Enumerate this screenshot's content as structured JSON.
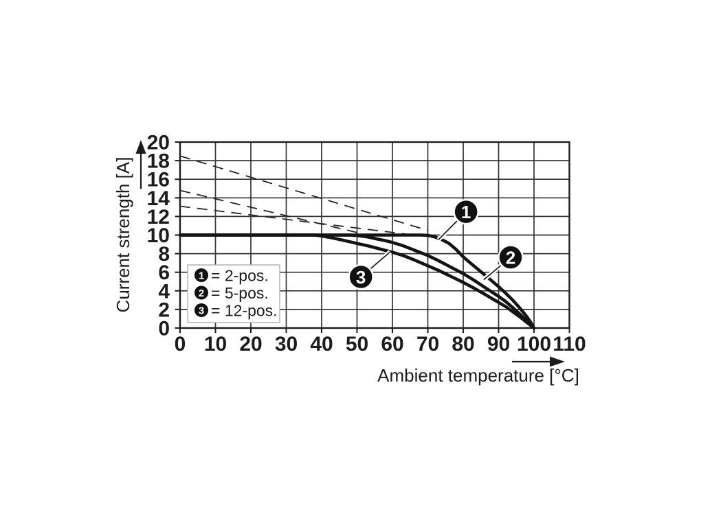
{
  "figure": {
    "y_axis_title": "Current strength [A]",
    "x_axis_title": "Ambient temperature [°C]"
  },
  "legend": {
    "items": [
      {
        "marker": "1",
        "label": "= 2-pos."
      },
      {
        "marker": "2",
        "label": "= 5-pos."
      },
      {
        "marker": "3",
        "label": "= 12-pos."
      }
    ]
  },
  "colors": {
    "ink": "#1c1c1c",
    "grid": "#333333",
    "curve": "#141414",
    "background": "#ffffff",
    "callout_fill": "#111111",
    "callout_text": "#ffffff"
  },
  "chart_data": {
    "type": "line",
    "title": "",
    "xlabel": "Ambient temperature [°C]",
    "ylabel": "Current strength [A]",
    "xlim": [
      0,
      110
    ],
    "ylim": [
      0,
      20
    ],
    "x_ticks": [
      0,
      10,
      20,
      30,
      40,
      50,
      60,
      70,
      80,
      90,
      100,
      110
    ],
    "y_ticks": [
      0,
      2,
      4,
      6,
      8,
      10,
      12,
      14,
      16,
      18,
      20
    ],
    "grid": true,
    "legend_position": "lower-left",
    "series": [
      {
        "name": "2-pos.",
        "callout": "1",
        "style": "solid",
        "points": [
          [
            0,
            10
          ],
          [
            68,
            10
          ],
          [
            70,
            9.97
          ],
          [
            72,
            9.8
          ],
          [
            74,
            9.5
          ],
          [
            76,
            9.1
          ],
          [
            78,
            8.45
          ],
          [
            80,
            7.65
          ],
          [
            82,
            7.0
          ],
          [
            85,
            6.05
          ],
          [
            88,
            5.1
          ],
          [
            90,
            4.45
          ],
          [
            92,
            3.75
          ],
          [
            94,
            3.0
          ],
          [
            96,
            2.15
          ],
          [
            98,
            1.2
          ],
          [
            99,
            0.65
          ],
          [
            100,
            0
          ]
        ]
      },
      {
        "name": "5-pos.",
        "callout": "2",
        "style": "solid",
        "points": [
          [
            0,
            10
          ],
          [
            48,
            10
          ],
          [
            50,
            9.95
          ],
          [
            53,
            9.8
          ],
          [
            56,
            9.55
          ],
          [
            58,
            9.4
          ],
          [
            60,
            9.2
          ],
          [
            63,
            8.85
          ],
          [
            65,
            8.55
          ],
          [
            68,
            8.1
          ],
          [
            70,
            7.8
          ],
          [
            73,
            7.25
          ],
          [
            76,
            6.65
          ],
          [
            78,
            6.25
          ],
          [
            80,
            5.85
          ],
          [
            83,
            5.15
          ],
          [
            86,
            4.4
          ],
          [
            88,
            3.9
          ],
          [
            90,
            3.4
          ],
          [
            92,
            2.85
          ],
          [
            94,
            2.2
          ],
          [
            96,
            1.5
          ],
          [
            98,
            0.75
          ],
          [
            100,
            0
          ]
        ]
      },
      {
        "name": "12-pos.",
        "callout": "3",
        "style": "solid",
        "points": [
          [
            0,
            10
          ],
          [
            38,
            10
          ],
          [
            40,
            9.9
          ],
          [
            43,
            9.7
          ],
          [
            46,
            9.45
          ],
          [
            50,
            9.1
          ],
          [
            53,
            8.85
          ],
          [
            56,
            8.55
          ],
          [
            60,
            8.15
          ],
          [
            63,
            7.8
          ],
          [
            66,
            7.35
          ],
          [
            70,
            6.7
          ],
          [
            73,
            6.2
          ],
          [
            76,
            5.65
          ],
          [
            80,
            4.9
          ],
          [
            83,
            4.3
          ],
          [
            86,
            3.65
          ],
          [
            88,
            3.2
          ],
          [
            90,
            2.75
          ],
          [
            92,
            2.3
          ],
          [
            94,
            1.75
          ],
          [
            96,
            1.2
          ],
          [
            98,
            0.6
          ],
          [
            100,
            0
          ]
        ]
      },
      {
        "name": "derating-linear-1",
        "style": "dashed",
        "points": [
          [
            0,
            18.5
          ],
          [
            70,
            10.5
          ]
        ]
      },
      {
        "name": "derating-linear-2",
        "style": "dashed",
        "points": [
          [
            0,
            14.8
          ],
          [
            53,
            10.0
          ]
        ]
      },
      {
        "name": "derating-linear-3",
        "style": "dashed",
        "points": [
          [
            0,
            13.1
          ],
          [
            66,
            10.0
          ]
        ]
      }
    ],
    "callouts": [
      {
        "label": "1",
        "at": [
          80.8,
          12.5
        ],
        "points_to": [
          73.0,
          9.5
        ]
      },
      {
        "label": "2",
        "at": [
          93.4,
          7.6
        ],
        "points_to": [
          85.8,
          5.2
        ]
      },
      {
        "label": "3",
        "at": [
          51.1,
          5.5
        ],
        "points_to": [
          59.4,
          8.2
        ]
      }
    ]
  }
}
